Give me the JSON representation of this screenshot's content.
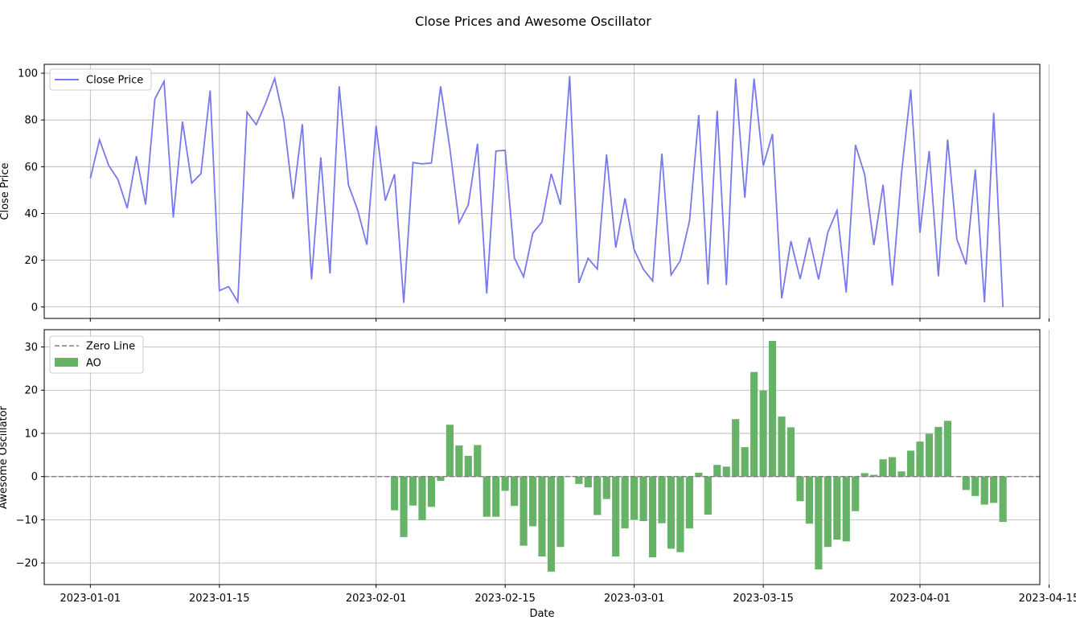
{
  "figure": {
    "title": "Close Prices and Awesome Oscillator"
  },
  "chart_data": [
    {
      "type": "line",
      "xlabel": "",
      "ylabel": "Close Price",
      "xlim": [
        "2022-12-27",
        "2023-04-14"
      ],
      "ylim": [
        -4.9,
        103.8
      ],
      "grid": true,
      "legend": "top-left",
      "yticks": [
        0,
        20,
        40,
        60,
        80,
        100
      ],
      "series": [
        {
          "name": "Close Price",
          "color": "#7777ee",
          "x_start": "2023-01-01",
          "values": [
            55,
            71.5,
            60.5,
            54.5,
            42.3,
            64.5,
            43.8,
            89,
            96.5,
            38.3,
            79.3,
            53,
            57,
            92.6,
            7,
            8.7,
            2.2,
            83.3,
            78,
            87,
            97.8,
            79.8,
            46.2,
            78.2,
            11.8,
            64,
            14.3,
            94.4,
            52.2,
            41.5,
            26.6,
            77.5,
            45.5,
            56.8,
            1.8,
            61.8,
            61.2,
            61.6,
            94.4,
            68,
            36,
            43.7,
            69.8,
            5.8,
            66.7,
            67,
            21,
            12.9,
            31.6,
            36.4,
            57,
            43.8,
            98.8,
            10.3,
            20.8,
            16.2,
            65.3,
            25.3,
            46.5,
            24.4,
            16.1,
            11.1,
            65.6,
            13.7,
            19.8,
            36.8,
            82.1,
            9.6,
            84,
            9.4,
            97.7,
            46.7,
            97.7,
            60.4,
            74,
            3.7,
            28.2,
            12,
            29.7,
            11.8,
            31.9,
            41.3,
            6.2,
            69.3,
            56.7,
            26.5,
            52.3,
            9.2,
            57.3,
            93,
            31.8,
            66.7,
            13.1,
            71.6,
            29,
            18.2,
            58.8,
            2,
            83,
            0
          ]
        }
      ]
    },
    {
      "type": "bar",
      "xlabel": "Date",
      "ylabel": "Awesome Oscillator",
      "xlim": [
        "2022-12-27",
        "2023-04-14"
      ],
      "ylim": [
        -25,
        34
      ],
      "grid": true,
      "legend": "top-left",
      "yticks": [
        -20,
        -10,
        0,
        10,
        20,
        30
      ],
      "xticks": [
        "2023-01-01",
        "2023-01-15",
        "2023-02-01",
        "2023-02-15",
        "2023-03-01",
        "2023-03-15",
        "2023-04-01",
        "2023-04-15"
      ],
      "zero_line": {
        "name": "Zero Line",
        "value": 0,
        "color": "#808080",
        "style": "dashed"
      },
      "series": [
        {
          "name": "AO",
          "color": "#66b266",
          "x_start": "2023-02-03",
          "values": [
            -7.8,
            -14,
            -6.7,
            -10.1,
            -7,
            -1,
            12,
            7.2,
            4.8,
            7.3,
            -9.3,
            -9.3,
            -3.3,
            -6.8,
            -16,
            -11.5,
            -18.5,
            -22,
            -16.3,
            0,
            -1.7,
            -2.5,
            -8.9,
            -5.2,
            -18.5,
            -12,
            -10,
            -10.3,
            -18.7,
            -10.8,
            -16.7,
            -17.5,
            -12,
            0.9,
            -8.8,
            2.7,
            2.3,
            13.3,
            6.8,
            24.2,
            19.9,
            31.4,
            13.9,
            11.4,
            -5.7,
            -10.9,
            -21.5,
            -16.3,
            -14.6,
            -15,
            -8,
            0.8,
            0.4,
            4,
            4.5,
            1.2,
            6,
            8.1,
            9.9,
            11.5,
            12.9,
            0,
            -3.1,
            -4.5,
            -6.5,
            -6.1,
            -10.5
          ]
        }
      ]
    }
  ]
}
